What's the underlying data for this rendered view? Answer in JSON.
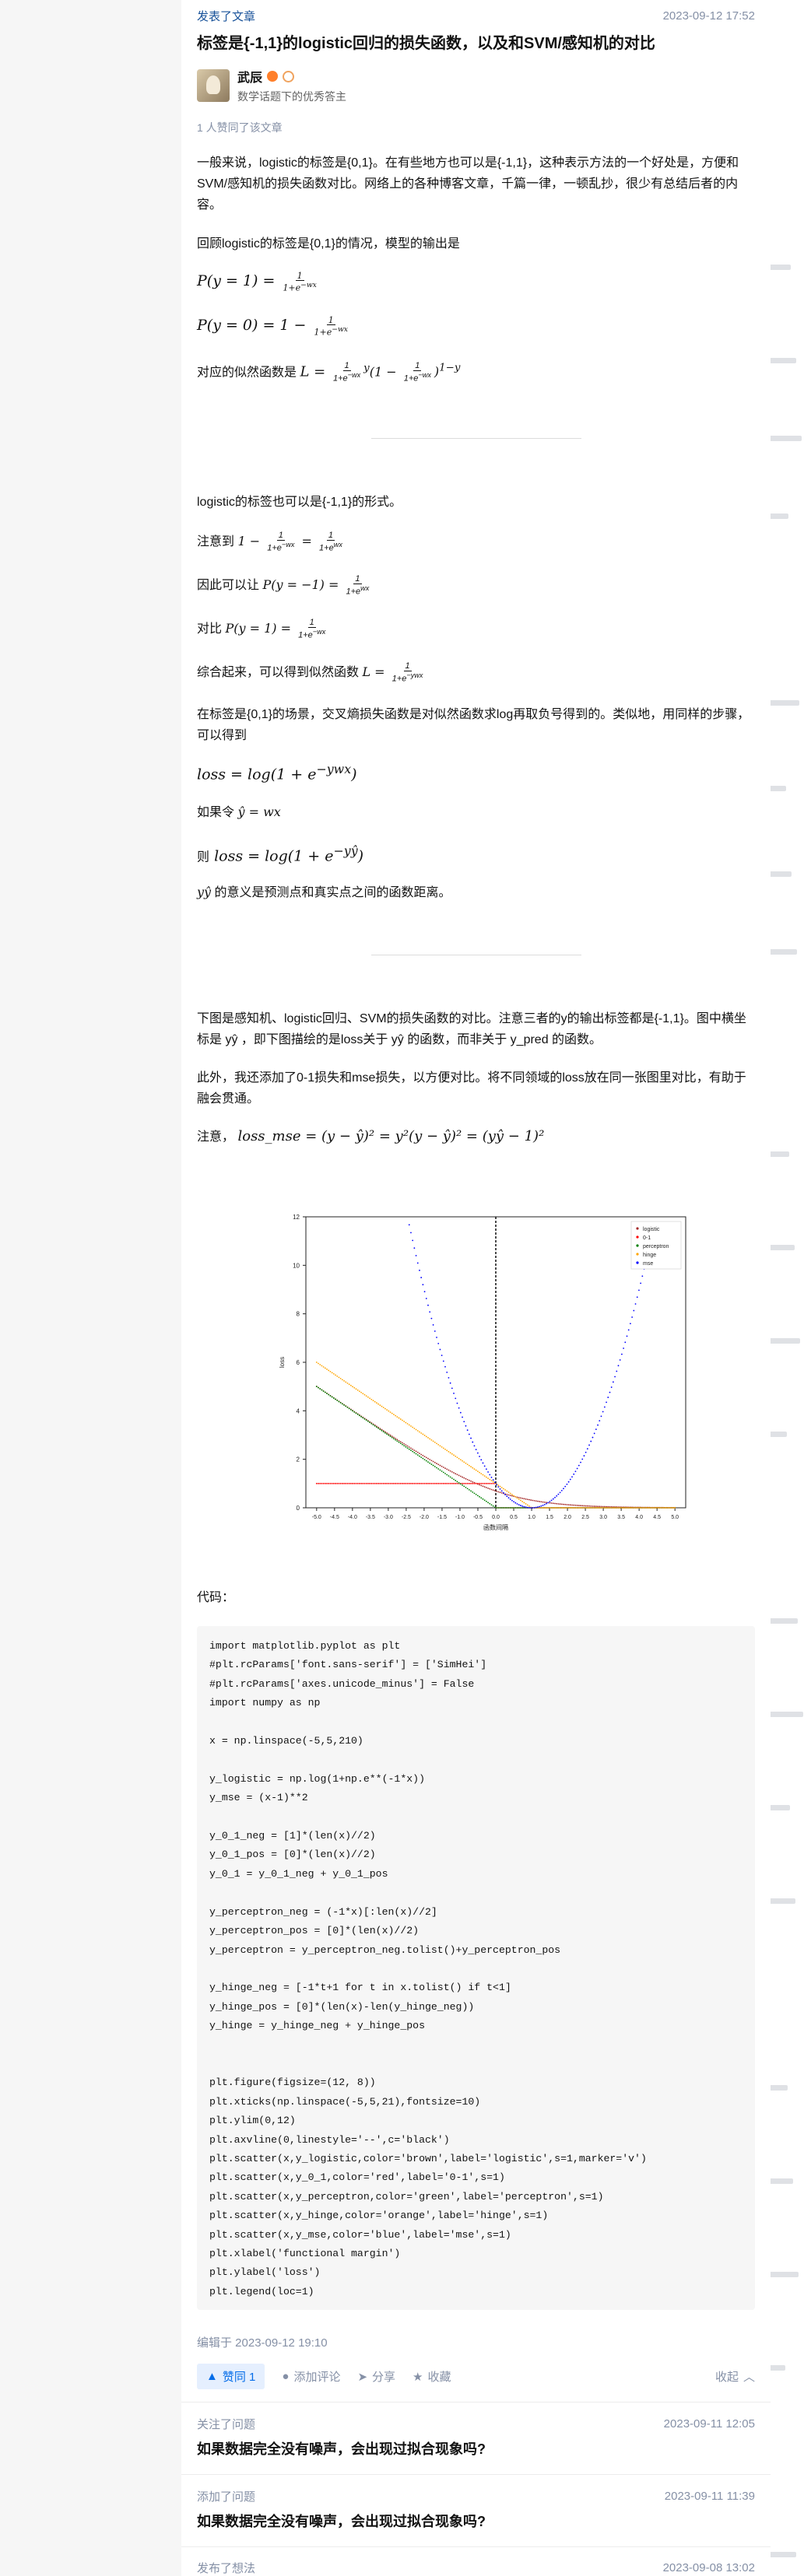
{
  "header": {
    "action": "发表了文章",
    "time": "2023-09-12 17:52",
    "title": "标签是{-1,1}的logistic回归的损失函数，以及和SVM/感知机的对比"
  },
  "author": {
    "name": "武辰",
    "bio": "数学话题下的优秀答主",
    "upvoted_text": "1 人赞同了该文章"
  },
  "content": {
    "p1": "一般来说，logistic的标签是{0,1}。在有些地方也可以是{-1,1}，这种表示方法的一个好处是，方便和SVM/感知机的损失函数对比。网络上的各种博客文章，千篇一律，一顿乱抄，很少有总结后者的内容。",
    "p2": "回顾logistic的标签是{0,1}的情况，模型的输出是",
    "eq1": "P(y = 1) =",
    "eq2": "P(y = 0) = 1 −",
    "p3_prefix": "对应的似然函数是",
    "p4": "logistic的标签也可以是{-1,1}的形式。",
    "p5_prefix": "注意到",
    "p6_prefix": "因此可以让",
    "p7_prefix": "对比",
    "p8_prefix": "综合起来，可以得到似然函数",
    "p9": "在标签是{0,1}的场景，交叉熵损失函数是对似然函数求log再取负号得到的。类似地，用同样的步骤，可以得到",
    "eq_loss": "loss = log(1 + e",
    "p10_prefix": "如果令",
    "p10_math": "ŷ = wx",
    "p11_prefix": "则",
    "eq_loss2": "loss = log(1 + e",
    "p12_suffix": "的意义是预测点和真实点之间的函数距离。",
    "p13": "下图是感知机、logistic回归、SVM的损失函数的对比。注意三者的y的输出标签都是{-1,1}。图中横坐标是 yŷ ，即下图描绘的是loss关于 yŷ 的函数，而非关于 y_pred 的函数。",
    "p14": "此外，我还添加了0-1损失和mse损失，以方便对比。将不同领域的loss放在同一张图里对比，有助于融会贯通。",
    "p15_prefix": "注意，",
    "p15_math": "loss_mse = (y − ŷ)² = y²(y − ŷ)² = (yŷ − 1)²",
    "code_label": "代码："
  },
  "chart_data": {
    "type": "scatter",
    "title": "",
    "xlabel": "函数间隔",
    "ylabel": "loss",
    "xlim": [
      -5.3,
      5.3
    ],
    "ylim": [
      0,
      12
    ],
    "xticks": [
      "-5.0",
      "-4.5",
      "-4.0",
      "-3.5",
      "-3.0",
      "-2.5",
      "-2.0",
      "-1.5",
      "-1.0",
      "-0.5",
      "0.0",
      "0.5",
      "1.0",
      "1.5",
      "2.0",
      "2.5",
      "3.0",
      "3.5",
      "4.0",
      "4.5",
      "5.0"
    ],
    "yticks": [
      "0",
      "2",
      "4",
      "6",
      "8",
      "10",
      "12"
    ],
    "vline_x": 0,
    "legend": [
      "logistic",
      "0-1",
      "perceptron",
      "hinge",
      "mse"
    ],
    "legend_position": "top-right",
    "series": [
      {
        "name": "logistic",
        "color": "brown",
        "formula": "log(1+exp(-x))"
      },
      {
        "name": "0-1",
        "color": "red",
        "formula": "1 if x<0 else 0"
      },
      {
        "name": "perceptron",
        "color": "green",
        "formula": "-x if x<0 else 0"
      },
      {
        "name": "hinge",
        "color": "orange",
        "formula": "max(0, 1-x)"
      },
      {
        "name": "mse",
        "color": "blue",
        "formula": "(x-1)^2"
      }
    ],
    "x_range": [
      -5,
      5
    ],
    "n_points": 210
  },
  "code": "import matplotlib.pyplot as plt\n#plt.rcParams['font.sans-serif'] = ['SimHei']\n#plt.rcParams['axes.unicode_minus'] = False\nimport numpy as np\n\nx = np.linspace(-5,5,210)\n\ny_logistic = np.log(1+np.e**(-1*x))\ny_mse = (x-1)**2\n\ny_0_1_neg = [1]*(len(x)//2)\ny_0_1_pos = [0]*(len(x)//2)\ny_0_1 = y_0_1_neg + y_0_1_pos\n\ny_perceptron_neg = (-1*x)[:len(x)//2]\ny_perceptron_pos = [0]*(len(x)//2)\ny_perceptron = y_perceptron_neg.tolist()+y_perceptron_pos\n\ny_hinge_neg = [-1*t+1 for t in x.tolist() if t<1]\ny_hinge_pos = [0]*(len(x)-len(y_hinge_neg))\ny_hinge = y_hinge_neg + y_hinge_pos\n\n\nplt.figure(figsize=(12, 8))\nplt.xticks(np.linspace(-5,5,21),fontsize=10)\nplt.ylim(0,12)\nplt.axvline(0,linestyle='--',c='black')\nplt.scatter(x,y_logistic,color='brown',label='logistic',s=1,marker='v')\nplt.scatter(x,y_0_1,color='red',label='0-1',s=1)\nplt.scatter(x,y_perceptron,color='green',label='perceptron',s=1)\nplt.scatter(x,y_hinge,color='orange',label='hinge',s=1)\nplt.scatter(x,y_mse,color='blue',label='mse',s=1)\nplt.xlabel('functional margin')\nplt.ylabel('loss')\nplt.legend(loc=1)",
  "footer": {
    "edited": "编辑于 2023-09-12 19:10",
    "vote": "赞同 1",
    "comment": "添加评论",
    "share": "分享",
    "favorite": "收藏",
    "collapse": "收起"
  },
  "feed": [
    {
      "action": "关注了问题",
      "time": "2023-09-11 12:05",
      "title": "如果数据完全没有噪声，会出现过拟合现象吗?"
    },
    {
      "action": "添加了问题",
      "time": "2023-09-11 11:39",
      "title": "如果数据完全没有噪声，会出现过拟合现象吗?"
    },
    {
      "action": "发布了想法",
      "time": "2023-09-08 13:02"
    }
  ]
}
